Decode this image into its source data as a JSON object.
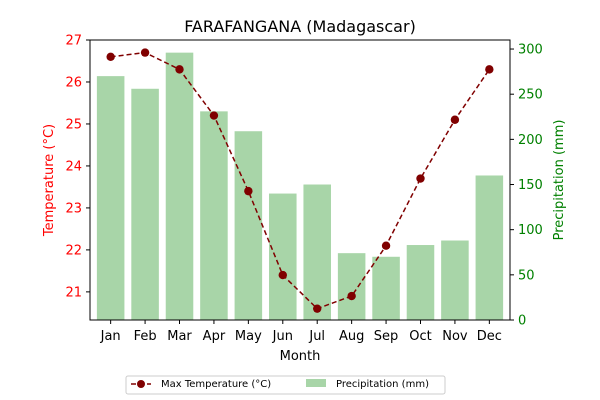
{
  "chart_data": {
    "type": "bar+line",
    "title": "FARAFANGANA (Madagascar)",
    "xlabel": "Month",
    "categories": [
      "Jan",
      "Feb",
      "Mar",
      "Apr",
      "May",
      "Jun",
      "Jul",
      "Aug",
      "Sep",
      "Oct",
      "Nov",
      "Dec"
    ],
    "temperature": {
      "name": "Max Temperature (°C)",
      "ylabel": "Temperature (°C)",
      "ylim": [
        20.33,
        27.0
      ],
      "ticks": [
        "21",
        "22",
        "23",
        "24",
        "25",
        "26",
        "27"
      ],
      "values": [
        26.6,
        26.7,
        26.3,
        25.2,
        23.4,
        21.4,
        20.6,
        20.9,
        22.1,
        23.7,
        25.1,
        26.3
      ],
      "color": "#800000",
      "axis_color": "#ff0000"
    },
    "precipitation": {
      "name": "Precipitation (mm)",
      "ylabel": "Precipitation (mm)",
      "ylim": [
        0,
        310
      ],
      "ticks": [
        "0",
        "50",
        "100",
        "150",
        "200",
        "250",
        "300"
      ],
      "values": [
        270,
        256,
        296,
        231,
        209,
        140,
        150,
        74,
        70,
        83,
        88,
        160
      ],
      "color": "#a8d5a8",
      "axis_color": "#008000"
    },
    "legend_position": "bottom-center",
    "grid": false
  }
}
